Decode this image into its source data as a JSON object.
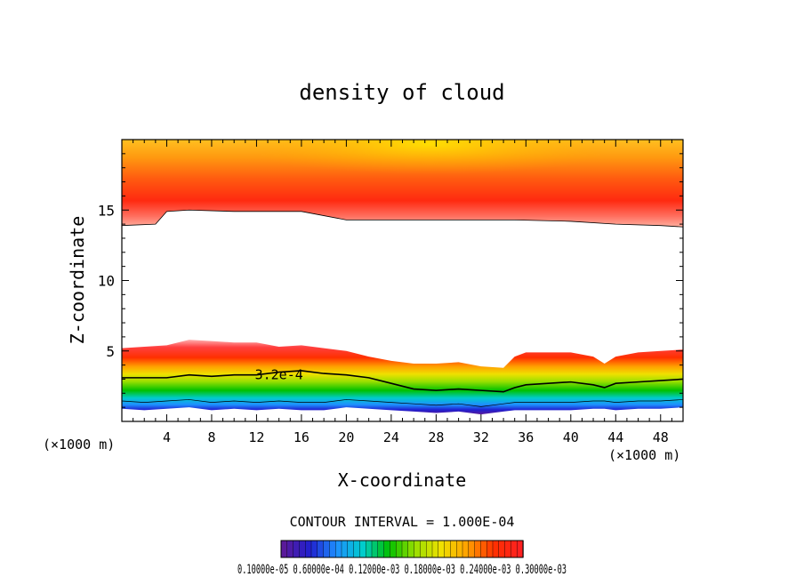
{
  "chart_data": {
    "type": "heatmap",
    "title": "density of cloud",
    "xlabel": "X-coordinate",
    "ylabel": "Z-coordinate",
    "x_unit_left": "(×1000 m)",
    "x_unit_right": "(×1000 m)",
    "xlim": [
      0,
      50
    ],
    "ylim": [
      0,
      20
    ],
    "x_ticks": [
      4,
      8,
      12,
      16,
      20,
      24,
      28,
      32,
      36,
      40,
      44,
      48
    ],
    "y_ticks": [
      5,
      10,
      15
    ],
    "contour_interval_text": "CONTOUR INTERVAL = 1.000E-04",
    "contour_label": "3.2e-4",
    "colorbar_labels_text": "0.10000e-05 0.60000e-04 0.12000e-03 0.18000e-03 0.24000e-03 0.30000e-03",
    "colorbar_values": [
      1e-06,
      6e-05,
      0.00012,
      0.00018,
      0.00024,
      0.0003
    ],
    "colormap": [
      "#5a1a9a",
      "#2020d0",
      "#1e90ff",
      "#00cccc",
      "#00c000",
      "#9adf00",
      "#f0e000",
      "#ffa000",
      "#ff3000",
      "#ff2020"
    ],
    "layers": [
      {
        "name": "upper",
        "x": [
          0,
          3,
          4,
          6,
          10,
          16,
          20,
          25,
          30,
          35,
          40,
          44,
          48,
          50
        ],
        "bottom": [
          13.9,
          14.0,
          14.9,
          15.0,
          14.9,
          14.9,
          14.3,
          14.3,
          14.3,
          14.3,
          14.2,
          14.0,
          13.9,
          13.8
        ],
        "top": 20
      },
      {
        "name": "lower",
        "x": [
          0,
          2,
          4,
          6,
          8,
          10,
          12,
          14,
          16,
          18,
          20,
          22,
          24,
          26,
          28,
          30,
          32,
          34,
          35,
          36,
          40,
          42,
          43,
          44,
          46,
          48,
          50
        ],
        "top": [
          5.2,
          5.3,
          5.4,
          5.8,
          5.7,
          5.6,
          5.6,
          5.3,
          5.4,
          5.2,
          5.0,
          4.6,
          4.3,
          4.1,
          4.1,
          4.2,
          3.9,
          3.8,
          4.6,
          4.9,
          4.9,
          4.6,
          4.1,
          4.6,
          4.9,
          5.0,
          5.1
        ],
        "contour": [
          3.1,
          3.1,
          3.1,
          3.3,
          3.2,
          3.3,
          3.3,
          3.5,
          3.6,
          3.4,
          3.3,
          3.1,
          2.7,
          2.3,
          2.2,
          2.3,
          2.2,
          2.1,
          2.4,
          2.6,
          2.8,
          2.6,
          2.4,
          2.7,
          2.8,
          2.9,
          3.0
        ],
        "bottom": [
          0.9,
          0.8,
          0.9,
          1.0,
          0.8,
          0.9,
          0.8,
          0.9,
          0.8,
          0.8,
          1.0,
          0.9,
          0.8,
          0.7,
          0.6,
          0.7,
          0.5,
          0.7,
          0.8,
          0.8,
          0.8,
          0.9,
          0.9,
          0.8,
          0.9,
          0.9,
          1.0
        ]
      }
    ]
  }
}
